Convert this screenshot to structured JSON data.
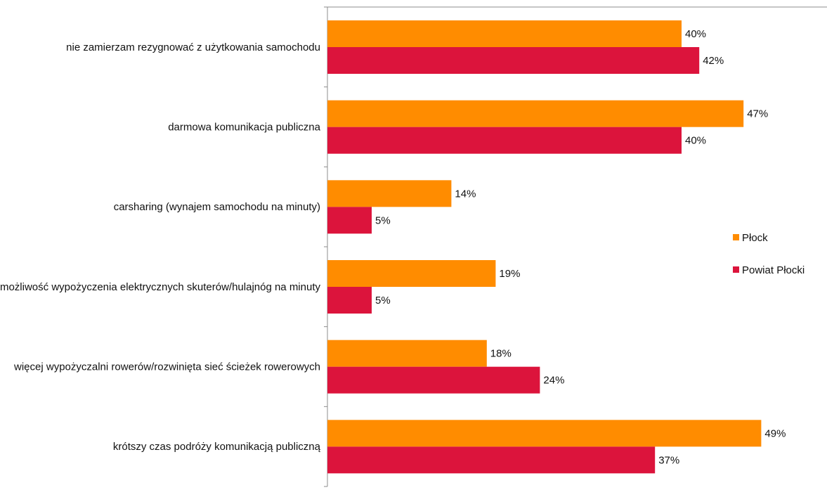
{
  "chart_data": {
    "type": "bar",
    "orientation": "horizontal",
    "categories": [
      "nie zamierzam rezygnować z użytkowania samochodu",
      "darmowa komunikacja publiczna",
      "carsharing (wynajem samochodu na minuty)",
      "możliwość wypożyczenia elektrycznych skuterów/hulajnóg na minuty",
      "więcej wypożyczalni rowerów/rozwinięta sieć ścieżek rowerowych",
      "krótszy czas podróży komunikacją publiczną"
    ],
    "series": [
      {
        "name": "Płock",
        "color": "#FF8C00",
        "values": [
          40,
          47,
          14,
          19,
          18,
          49
        ],
        "labels": [
          "40%",
          "47%",
          "14%",
          "19%",
          "18%",
          "49%"
        ]
      },
      {
        "name": "Powiat Płocki",
        "color": "#DC143C",
        "values": [
          42,
          40,
          5,
          5,
          24,
          37
        ],
        "labels": [
          "42%",
          "40%",
          "5%",
          "5%",
          "24%",
          "37%"
        ]
      }
    ],
    "xlim": [
      0,
      59
    ],
    "grid": false,
    "legend_position": "right"
  }
}
